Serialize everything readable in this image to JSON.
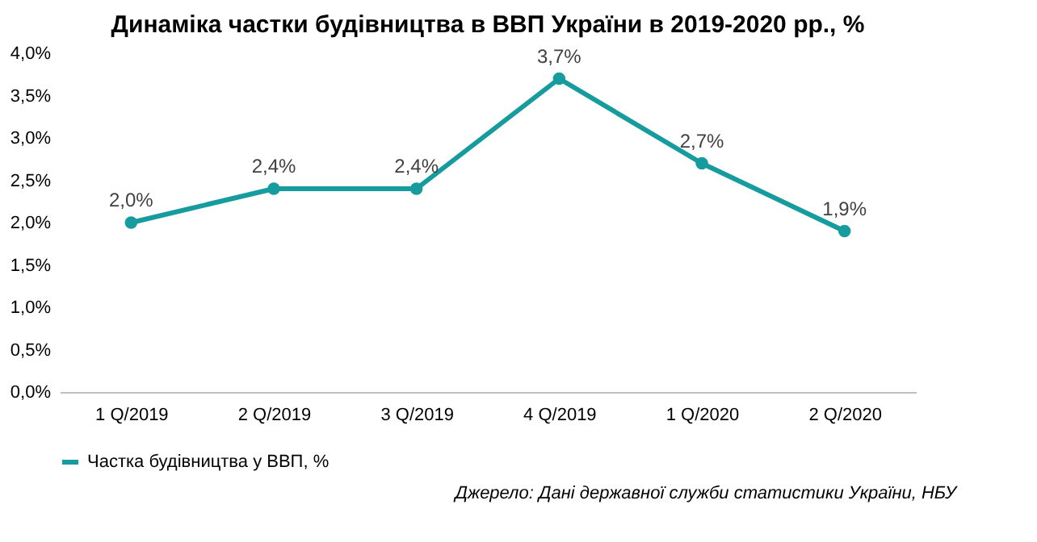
{
  "chart_data": {
    "type": "line",
    "title": "Динаміка частки будівництва в ВВП України в 2019-2020 рр., %",
    "categories": [
      "1 Q/2019",
      "2 Q/2019",
      "3 Q/2019",
      "4 Q/2019",
      "1 Q/2020",
      "2 Q/2020"
    ],
    "series": [
      {
        "name": "Частка будівництва  у  ВВП, %",
        "color": "#169b9e",
        "values": [
          2.0,
          2.4,
          2.4,
          3.7,
          2.7,
          1.9
        ],
        "value_labels": [
          "2,0%",
          "2,4%",
          "2,4%",
          "3,7%",
          "2,7%",
          "1,9%"
        ]
      }
    ],
    "ylim": [
      0,
      4
    ],
    "yticks": [
      {
        "value": 0,
        "label": "0,0%"
      },
      {
        "value": 0.5,
        "label": "0,5%"
      },
      {
        "value": 1,
        "label": "1,0%"
      },
      {
        "value": 1.5,
        "label": "1,5%"
      },
      {
        "value": 2,
        "label": "2,0%"
      },
      {
        "value": 2.5,
        "label": "2,5%"
      },
      {
        "value": 3,
        "label": "3,0%"
      },
      {
        "value": 3.5,
        "label": "3,5%"
      },
      {
        "value": 4,
        "label": "4,0%"
      }
    ],
    "grid": false,
    "legend": "bottom",
    "marker": "circle",
    "line_style": "solid",
    "annotations": [
      "Джерело: Дані державної служби статистики України, НБУ"
    ]
  }
}
